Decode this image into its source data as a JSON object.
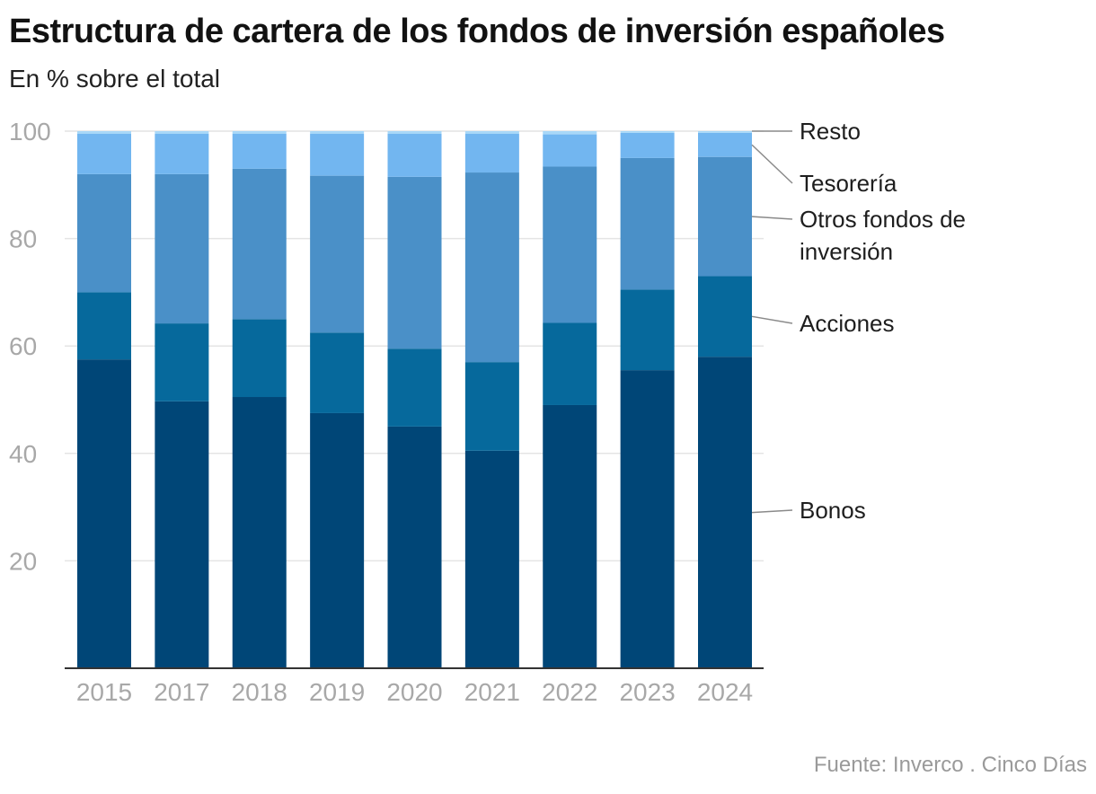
{
  "header": {
    "title": "Estructura de cartera de los fondos de inversión españoles",
    "subtitle": "En % sobre el total"
  },
  "footer": {
    "source": "Fuente: Inverco . Cinco Días"
  },
  "colors": {
    "Bonos": "#004677",
    "Acciones": "#06699c",
    "Otros fondos de inversión": "#4a90c8",
    "Tesorería": "#72b6f0",
    "Resto": "#a8d8f8",
    "grid": "#e4e4e4",
    "axis": "#333333",
    "leader": "#8a8a8a"
  },
  "chart_data": {
    "type": "bar",
    "stacked": true,
    "categories": [
      "2015",
      "2017",
      "2018",
      "2019",
      "2020",
      "2021",
      "2022",
      "2023",
      "2024"
    ],
    "series": [
      {
        "name": "Bonos",
        "label_lines": [
          "Bonos"
        ],
        "values": [
          57.5,
          49.7,
          50.5,
          47.5,
          45.0,
          40.5,
          49.0,
          55.5,
          58.0
        ]
      },
      {
        "name": "Acciones",
        "label_lines": [
          "Acciones"
        ],
        "values": [
          12.5,
          14.5,
          14.5,
          15.0,
          14.5,
          16.5,
          15.3,
          15.0,
          15.0
        ]
      },
      {
        "name": "Otros fondos de inversión",
        "label_lines": [
          "Otros fondos de",
          "inversión"
        ],
        "values": [
          22.0,
          27.8,
          28.0,
          29.2,
          32.0,
          35.3,
          29.1,
          24.5,
          22.2
        ]
      },
      {
        "name": "Tesorería",
        "label_lines": [
          "Tesorería"
        ],
        "values": [
          7.5,
          7.5,
          6.5,
          7.8,
          8.0,
          7.2,
          6.0,
          4.7,
          4.5
        ]
      },
      {
        "name": "Resto",
        "label_lines": [
          "Resto"
        ],
        "values": [
          0.5,
          0.5,
          0.5,
          0.5,
          0.5,
          0.5,
          0.6,
          0.3,
          0.3
        ]
      }
    ],
    "y_ticks": [
      "20",
      "40",
      "60",
      "80",
      "100"
    ],
    "ylim": [
      0,
      100
    ],
    "grid": true,
    "legend": "direct-labels-right"
  }
}
